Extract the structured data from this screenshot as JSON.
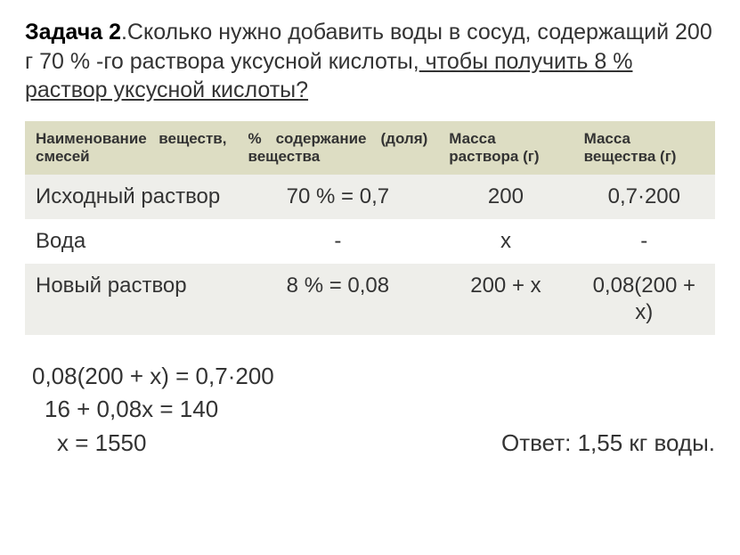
{
  "problem": {
    "task_label": "Задача 2",
    "text_part1": ".Сколько нужно добавить воды в сосуд, содержащий 200 г 70 % -го раствора уксусной кислоты,",
    "text_underlined": " чтобы получить 8 % раствор уксусной кислоты?"
  },
  "table": {
    "headers": {
      "col1": "Наименование веществ, смесей",
      "col2": "% содержание (доля) вещества",
      "col3": "Масса раствора (г)",
      "col4": "Масса вещества (г)"
    },
    "header_bg": "#ddddc3",
    "odd_row_bg": "#eeeeea",
    "even_row_bg": "#ffffff",
    "rows": [
      {
        "name": "Исходный раствор",
        "pct": "70 % = 0,7",
        "mass_sol": "200",
        "mass_sub": "0,7·200"
      },
      {
        "name": "Вода",
        "pct": "-",
        "mass_sol": "х",
        "mass_sub": "-"
      },
      {
        "name": "Новый раствор",
        "pct": "8 % = 0,08",
        "mass_sol": "200 + х",
        "mass_sub": "0,08(200 + х)"
      }
    ]
  },
  "equations": {
    "line1": "0,08(200 + х) = 0,7·200",
    "line2": "16 + 0,08х = 140",
    "line3": "х = 1550",
    "answer": "Ответ: 1,55 кг воды."
  },
  "styling": {
    "body_width": 831,
    "body_height": 623,
    "background": "#ffffff",
    "text_color": "#333333",
    "problem_fontsize": 25,
    "header_fontsize": 17,
    "cell_fontsize": 24,
    "equation_fontsize": 26
  }
}
